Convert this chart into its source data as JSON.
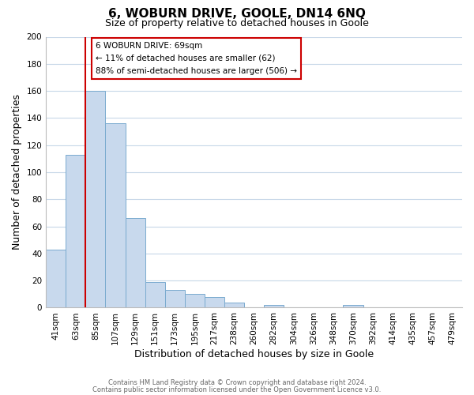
{
  "title": "6, WOBURN DRIVE, GOOLE, DN14 6NQ",
  "subtitle": "Size of property relative to detached houses in Goole",
  "xlabel": "Distribution of detached houses by size in Goole",
  "ylabel": "Number of detached properties",
  "bar_labels": [
    "41sqm",
    "63sqm",
    "85sqm",
    "107sqm",
    "129sqm",
    "151sqm",
    "173sqm",
    "195sqm",
    "217sqm",
    "238sqm",
    "260sqm",
    "282sqm",
    "304sqm",
    "326sqm",
    "348sqm",
    "370sqm",
    "392sqm",
    "414sqm",
    "435sqm",
    "457sqm",
    "479sqm"
  ],
  "bar_values": [
    43,
    113,
    160,
    136,
    66,
    19,
    13,
    10,
    8,
    4,
    0,
    2,
    0,
    0,
    0,
    2,
    0,
    0,
    0,
    0,
    0
  ],
  "bar_color": "#c8d9ed",
  "bar_edge_color": "#7aabcf",
  "highlight_color": "#cc0000",
  "highlight_bar_index": 1,
  "ylim": [
    0,
    200
  ],
  "yticks": [
    0,
    20,
    40,
    60,
    80,
    100,
    120,
    140,
    160,
    180,
    200
  ],
  "annotation_title": "6 WOBURN DRIVE: 69sqm",
  "annotation_line1": "← 11% of detached houses are smaller (62)",
  "annotation_line2": "88% of semi-detached houses are larger (506) →",
  "annotation_box_color": "#ffffff",
  "annotation_box_edge": "#cc0000",
  "footer_line1": "Contains HM Land Registry data © Crown copyright and database right 2024.",
  "footer_line2": "Contains public sector information licensed under the Open Government Licence v3.0.",
  "background_color": "#ffffff",
  "grid_color": "#c8d8e8",
  "title_fontsize": 11,
  "subtitle_fontsize": 9,
  "tick_fontsize": 7.5,
  "label_fontsize": 9
}
